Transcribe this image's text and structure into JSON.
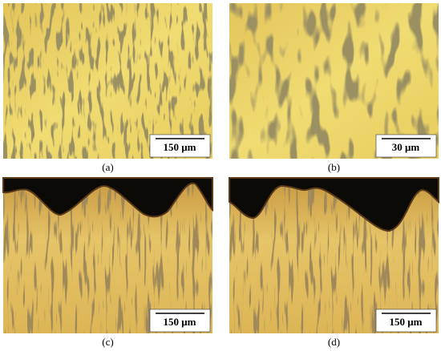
{
  "panels": [
    {
      "label": "(a)",
      "scale": "150 μm"
    },
    {
      "label": "(b)",
      "scale": "30 μm"
    },
    {
      "label": "(c)",
      "scale": "150 μm"
    },
    {
      "label": "(d)",
      "scale": "150 μm"
    }
  ]
}
